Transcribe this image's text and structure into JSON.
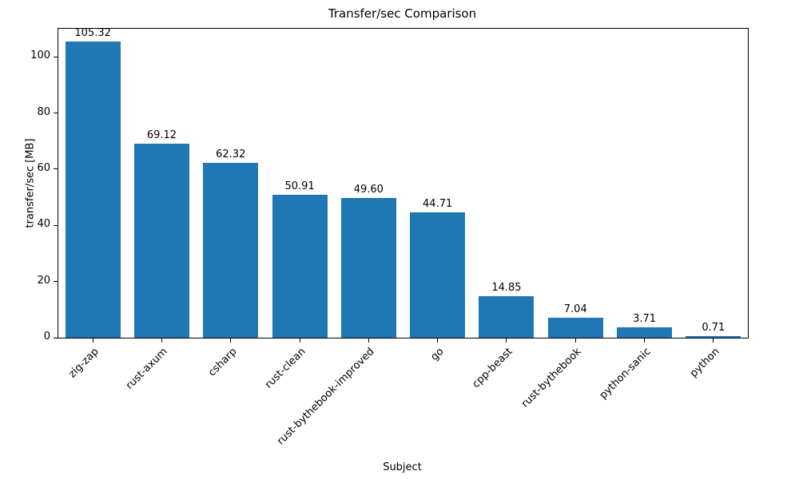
{
  "chart_data": {
    "type": "bar",
    "title": "Transfer/sec Comparison",
    "xlabel": "Subject",
    "ylabel": "transfer/sec [MB]",
    "categories": [
      "zig-zap",
      "rust-axum",
      "csharp",
      "rust-clean",
      "rust-bythebook-improved",
      "go",
      "cpp-beast",
      "rust-bythebook",
      "python-sanic",
      "python"
    ],
    "values": [
      105.32,
      69.12,
      62.32,
      50.91,
      49.6,
      44.71,
      14.85,
      7.04,
      3.71,
      0.71
    ],
    "value_labels": [
      "105.32",
      "69.12",
      "62.32",
      "50.91",
      "49.60",
      "44.71",
      "14.85",
      "7.04",
      "3.71",
      "0.71"
    ],
    "ylim": [
      0,
      110
    ],
    "yticks": [
      0,
      20,
      40,
      60,
      80,
      100
    ],
    "bar_color": "#1f77b4",
    "grid": false,
    "legend": "none"
  }
}
